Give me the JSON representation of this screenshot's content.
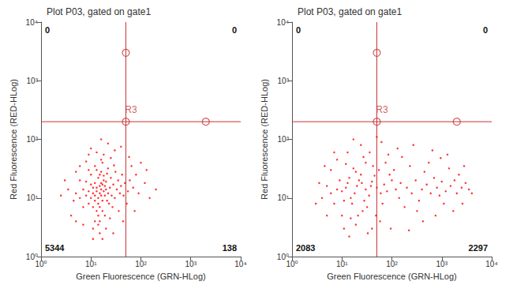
{
  "chart_data": [
    {
      "type": "scatter",
      "title": "Plot P03, gated on gate1",
      "xlabel": "Green Fluorescence (GRN-HLog)",
      "ylabel": "Red Fluorescence (RED-HLog)",
      "log": true,
      "grid": false,
      "color": "#ff0000",
      "xlim": [
        1,
        10000
      ],
      "ylim": [
        1,
        10000
      ],
      "xticks": [
        {
          "value": 1,
          "label": "10⁰"
        },
        {
          "value": 10,
          "label": "10¹"
        },
        {
          "value": 100,
          "label": "10²"
        },
        {
          "value": 1000,
          "label": "10³"
        },
        {
          "value": 10000,
          "label": "10⁴"
        }
      ],
      "yticks": [
        {
          "value": 1,
          "label": "10⁰"
        },
        {
          "value": 10,
          "label": "10¹"
        },
        {
          "value": 100,
          "label": "10²"
        },
        {
          "value": 1000,
          "label": "10³"
        },
        {
          "value": 10000,
          "label": "10⁴"
        }
      ],
      "gate": {
        "x": 50,
        "y": 200,
        "label": "R3",
        "color": "#c83232",
        "handles": [
          [
            50,
            3000
          ],
          [
            50,
            200
          ],
          [
            2000,
            200
          ]
        ]
      },
      "quadrant_counts": {
        "upper_left": 0,
        "upper_right": 0,
        "lower_left": 5344,
        "lower_right": 138
      },
      "points": [
        [
          15,
          12
        ],
        [
          14,
          10
        ],
        [
          16,
          14
        ],
        [
          12,
          11
        ],
        [
          18,
          13
        ],
        [
          13,
          15
        ],
        [
          17,
          9
        ],
        [
          11,
          12
        ],
        [
          19,
          11
        ],
        [
          15,
          16
        ],
        [
          14,
          8
        ],
        [
          16,
          18
        ],
        [
          12,
          9
        ],
        [
          20,
          14
        ],
        [
          13,
          13
        ],
        [
          17,
          17
        ],
        [
          10,
          10
        ],
        [
          22,
          12
        ],
        [
          15,
          7
        ],
        [
          18,
          20
        ],
        [
          11,
          15
        ],
        [
          14,
          22
        ],
        [
          21,
          9
        ],
        [
          16,
          11
        ],
        [
          13,
          6
        ],
        [
          19,
          16
        ],
        [
          9,
          13
        ],
        [
          24,
          15
        ],
        [
          15,
          25
        ],
        [
          12,
          18
        ],
        [
          17,
          6
        ],
        [
          20,
          19
        ],
        [
          8,
          11
        ],
        [
          26,
          11
        ],
        [
          14,
          5
        ],
        [
          18,
          24
        ],
        [
          10,
          17
        ],
        [
          23,
          8
        ],
        [
          16,
          28
        ],
        [
          11,
          7
        ],
        [
          28,
          17
        ],
        [
          13,
          30
        ],
        [
          7,
          14
        ],
        [
          30,
          10
        ],
        [
          15,
          4
        ],
        [
          21,
          26
        ],
        [
          9,
          8
        ],
        [
          25,
          22
        ],
        [
          12,
          35
        ],
        [
          19,
          5
        ],
        [
          6,
          10
        ],
        [
          33,
          14
        ],
        [
          17,
          40
        ],
        [
          8,
          19
        ],
        [
          27,
          7
        ],
        [
          14,
          3.5
        ],
        [
          35,
          20
        ],
        [
          10,
          25
        ],
        [
          22,
          32
        ],
        [
          5,
          12
        ],
        [
          38,
          12
        ],
        [
          16,
          45
        ],
        [
          7,
          7
        ],
        [
          31,
          28
        ],
        [
          12,
          4
        ],
        [
          40,
          16
        ],
        [
          9,
          30
        ],
        [
          24,
          4.5
        ],
        [
          45,
          11
        ],
        [
          18,
          55
        ],
        [
          6,
          20
        ],
        [
          29,
          36
        ],
        [
          4.5,
          9
        ],
        [
          48,
          18
        ],
        [
          13,
          60
        ],
        [
          20,
          3
        ],
        [
          42,
          25
        ],
        [
          8,
          42
        ],
        [
          55,
          13
        ],
        [
          11,
          3
        ],
        [
          60,
          20
        ],
        [
          25,
          48
        ],
        [
          5,
          28
        ],
        [
          70,
          15
        ],
        [
          15,
          2.5
        ],
        [
          36,
          6
        ],
        [
          3.5,
          14
        ],
        [
          80,
          25
        ],
        [
          10,
          70
        ],
        [
          52,
          8
        ],
        [
          7,
          3.5
        ],
        [
          90,
          12
        ],
        [
          30,
          65
        ],
        [
          4,
          5
        ],
        [
          120,
          18
        ],
        [
          17,
          2
        ],
        [
          65,
          35
        ],
        [
          9,
          55
        ],
        [
          150,
          10
        ],
        [
          44,
          4
        ],
        [
          3,
          20
        ],
        [
          22,
          85
        ],
        [
          200,
          14
        ],
        [
          6,
          35
        ],
        [
          100,
          40
        ],
        [
          28,
          2.5
        ],
        [
          58,
          50
        ],
        [
          2.5,
          11
        ],
        [
          75,
          6
        ],
        [
          16,
          100
        ],
        [
          11,
          2
        ],
        [
          130,
          30
        ],
        [
          40,
          75
        ],
        [
          5,
          4
        ]
      ]
    },
    {
      "type": "scatter",
      "title": "Plot P03, gated on gate1",
      "xlabel": "Green Fluorescence (GRN-HLog)",
      "ylabel": "Red Fluorescence (RED-HLog)",
      "log": true,
      "grid": false,
      "color": "#ff0000",
      "xlim": [
        1,
        10000
      ],
      "ylim": [
        1,
        10000
      ],
      "xticks": [
        {
          "value": 1,
          "label": "10⁰"
        },
        {
          "value": 10,
          "label": "10¹"
        },
        {
          "value": 100,
          "label": "10²"
        },
        {
          "value": 1000,
          "label": "10³"
        },
        {
          "value": 10000,
          "label": "10⁴"
        }
      ],
      "yticks": [
        {
          "value": 1,
          "label": "10⁰"
        },
        {
          "value": 10,
          "label": "10¹"
        },
        {
          "value": 100,
          "label": "10²"
        },
        {
          "value": 1000,
          "label": "10³"
        },
        {
          "value": 10000,
          "label": "10⁴"
        }
      ],
      "gate": {
        "x": 50,
        "y": 200,
        "label": "R3",
        "color": "#c83232",
        "handles": [
          [
            50,
            3000
          ],
          [
            50,
            200
          ],
          [
            2000,
            200
          ]
        ]
      },
      "quadrant_counts": {
        "upper_left": 0,
        "upper_right": 0,
        "lower_left": 2083,
        "lower_right": 2297
      },
      "points": [
        [
          12,
          15
        ],
        [
          18,
          12
        ],
        [
          25,
          18
        ],
        [
          15,
          10
        ],
        [
          30,
          14
        ],
        [
          22,
          20
        ],
        [
          10,
          13
        ],
        [
          35,
          11
        ],
        [
          20,
          16
        ],
        [
          40,
          19
        ],
        [
          14,
          22
        ],
        [
          28,
          9
        ],
        [
          50,
          15
        ],
        [
          16,
          8
        ],
        [
          45,
          24
        ],
        [
          8,
          14
        ],
        [
          60,
          12
        ],
        [
          24,
          25
        ],
        [
          13,
          18
        ],
        [
          70,
          17
        ],
        [
          32,
          7
        ],
        [
          19,
          28
        ],
        [
          80,
          13
        ],
        [
          11,
          9
        ],
        [
          55,
          30
        ],
        [
          38,
          16
        ],
        [
          100,
          20
        ],
        [
          9,
          20
        ],
        [
          26,
          6
        ],
        [
          120,
          14
        ],
        [
          42,
          35
        ],
        [
          6,
          12
        ],
        [
          150,
          18
        ],
        [
          17,
          32
        ],
        [
          65,
          8
        ],
        [
          200,
          15
        ],
        [
          21,
          5
        ],
        [
          90,
          25
        ],
        [
          7,
          8
        ],
        [
          250,
          12
        ],
        [
          30,
          40
        ],
        [
          140,
          10
        ],
        [
          5,
          16
        ],
        [
          300,
          20
        ],
        [
          48,
          5
        ],
        [
          400,
          14
        ],
        [
          12,
          38
        ],
        [
          110,
          30
        ],
        [
          350,
          9
        ],
        [
          15,
          4.5
        ],
        [
          500,
          17
        ],
        [
          75,
          40
        ],
        [
          4,
          10
        ],
        [
          600,
          12
        ],
        [
          27,
          50
        ],
        [
          180,
          7
        ],
        [
          700,
          22
        ],
        [
          10,
          5
        ],
        [
          800,
          15
        ],
        [
          36,
          60
        ],
        [
          230,
          35
        ],
        [
          3.5,
          18
        ],
        [
          900,
          11
        ],
        [
          58,
          4
        ],
        [
          1000,
          19
        ],
        [
          13,
          60
        ],
        [
          450,
          28
        ],
        [
          1200,
          13
        ],
        [
          85,
          55
        ],
        [
          1500,
          16
        ],
        [
          6,
          30
        ],
        [
          320,
          6
        ],
        [
          1800,
          20
        ],
        [
          19,
          3.5
        ],
        [
          2000,
          12
        ],
        [
          160,
          50
        ],
        [
          2500,
          15
        ],
        [
          40,
          3
        ],
        [
          550,
          40
        ],
        [
          3000,
          18
        ],
        [
          8,
          45
        ],
        [
          1100,
          8
        ],
        [
          130,
          70
        ],
        [
          2200,
          25
        ],
        [
          24,
          80
        ],
        [
          750,
          5
        ],
        [
          3500,
          14
        ],
        [
          5,
          5
        ],
        [
          270,
          80
        ],
        [
          1400,
          32
        ],
        [
          62,
          90
        ],
        [
          4000,
          12
        ],
        [
          11,
          3
        ],
        [
          950,
          48
        ],
        [
          3,
          8
        ],
        [
          420,
          4
        ],
        [
          17,
          100
        ],
        [
          1700,
          6
        ],
        [
          95,
          3
        ],
        [
          2800,
          35
        ],
        [
          33,
          2.5
        ],
        [
          650,
          65
        ],
        [
          7,
          60
        ],
        [
          220,
          2.8
        ],
        [
          1300,
          55
        ],
        [
          4.5,
          35
        ],
        [
          14,
          2.2
        ],
        [
          50,
          110
        ],
        [
          2600,
          8
        ]
      ]
    }
  ]
}
